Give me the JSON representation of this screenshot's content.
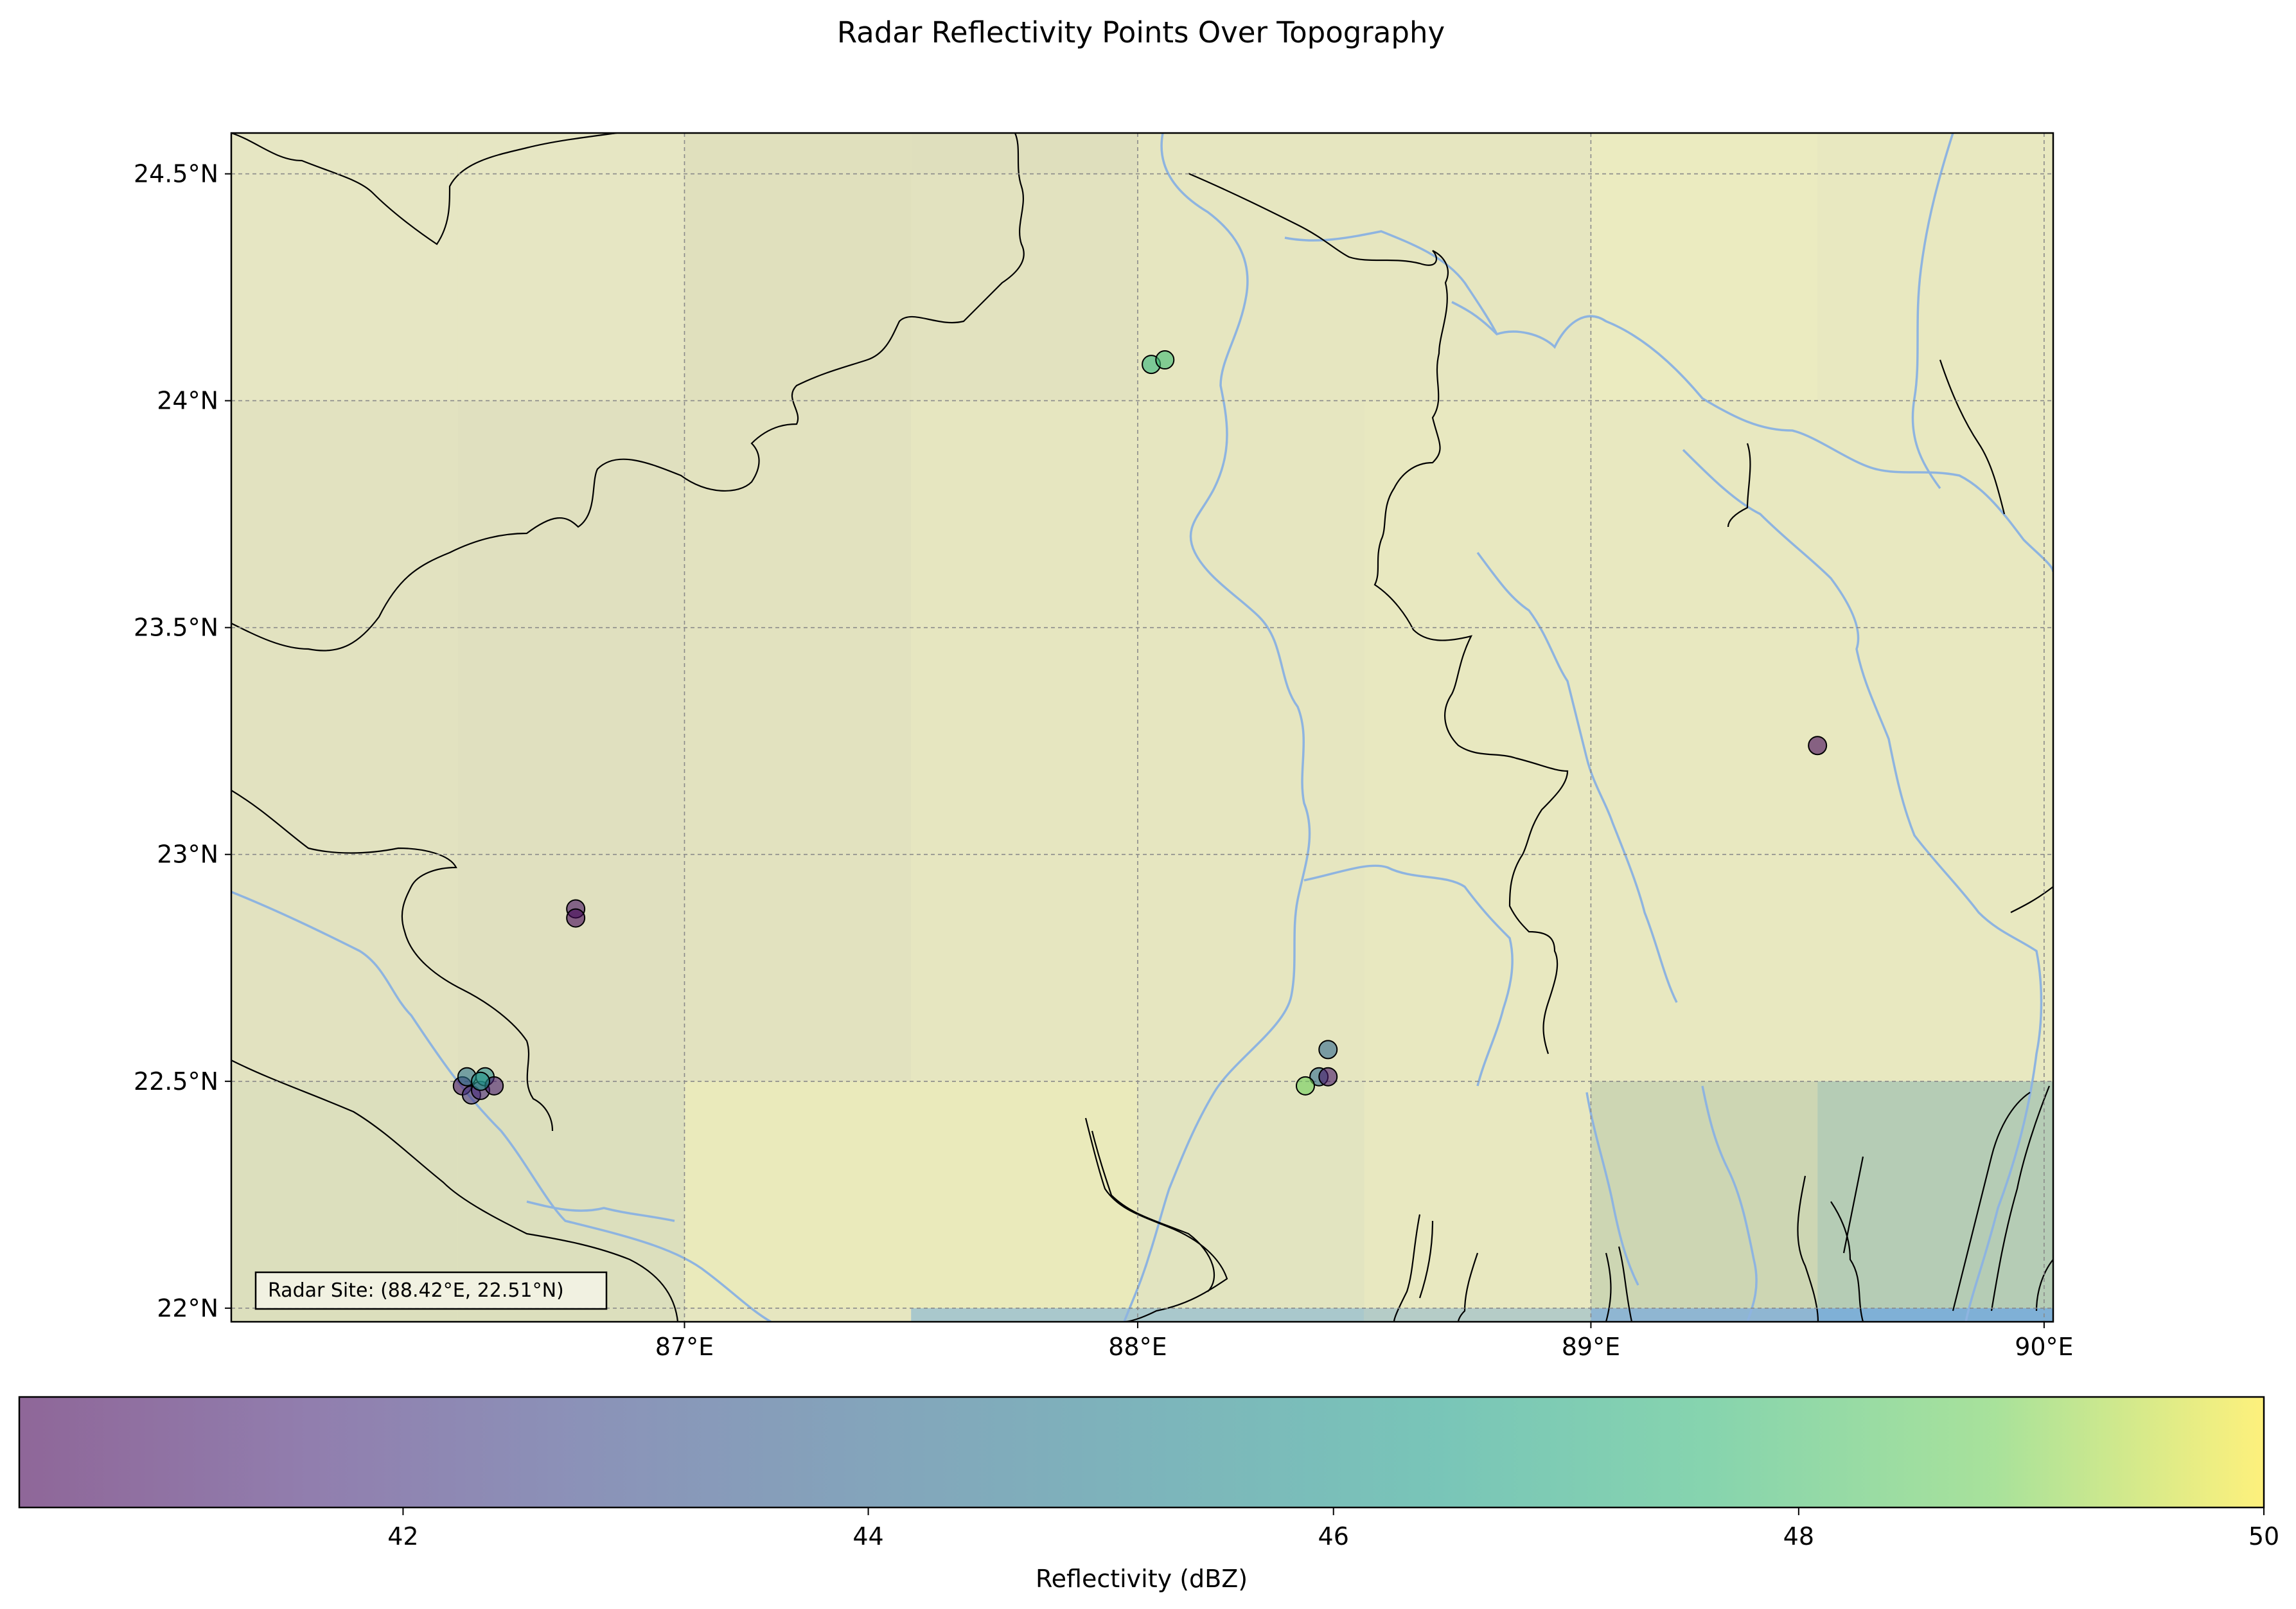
{
  "figure": {
    "title": "Radar Reflectivity Points Over Topography"
  },
  "chart_data": {
    "type": "scatter",
    "title": "Radar Reflectivity Points Over Topography",
    "projection": "PlateCarree",
    "extent": {
      "lon": [
        86.0,
        90.02
      ],
      "lat": [
        21.97,
        24.59
      ]
    },
    "x_ticks": [
      87,
      88,
      89,
      90
    ],
    "x_tick_labels": [
      "87°E",
      "88°E",
      "89°E",
      "90°E"
    ],
    "y_ticks": [
      22,
      22.5,
      23,
      23.5,
      24,
      24.5
    ],
    "y_tick_labels": [
      "22°N",
      "22.5°N",
      "23°N",
      "23.5°N",
      "24°N",
      "24.5°N"
    ],
    "grid": true,
    "basemap": {
      "description": "coarse topography/bathymetry cells with coastlines, rivers and borders",
      "ocean_color": "#7fb3d5",
      "land_color": "#e6e6bf",
      "river_color": "#8eb4e0",
      "border_color": "#000000",
      "cells": [
        {
          "lon": [
            86.0,
            86.5
          ],
          "lat": [
            24.0,
            24.59
          ],
          "shade": "#e6e6c3"
        },
        {
          "lon": [
            86.5,
            87.0
          ],
          "lat": [
            24.0,
            24.59
          ],
          "shade": "#e6e6c3"
        },
        {
          "lon": [
            87.0,
            87.5
          ],
          "lat": [
            24.0,
            24.59
          ],
          "shade": "#e0e0bd"
        },
        {
          "lon": [
            87.5,
            88.0
          ],
          "lat": [
            24.5,
            24.59
          ],
          "shade": "#dfdfbd"
        },
        {
          "lon": [
            87.5,
            88.0
          ],
          "lat": [
            24.0,
            24.5
          ],
          "shade": "#e2e2bf"
        },
        {
          "lon": [
            88.0,
            88.5
          ],
          "lat": [
            24.0,
            24.59
          ],
          "shade": "#e6e6c0"
        },
        {
          "lon": [
            88.5,
            89.0
          ],
          "lat": [
            24.0,
            24.59
          ],
          "shade": "#e6e6c0"
        },
        {
          "lon": [
            89.0,
            89.5
          ],
          "lat": [
            24.0,
            24.59
          ],
          "shade": "#ebebc0"
        },
        {
          "lon": [
            89.5,
            90.02
          ],
          "lat": [
            24.0,
            24.59
          ],
          "shade": "#e8e8c0"
        },
        {
          "lon": [
            86.0,
            86.5
          ],
          "lat": [
            22.5,
            24.0
          ],
          "shade": "#e2e2c0"
        },
        {
          "lon": [
            86.5,
            87.0
          ],
          "lat": [
            22.5,
            24.0
          ],
          "shade": "#e0e0bf"
        },
        {
          "lon": [
            87.0,
            87.5
          ],
          "lat": [
            22.5,
            24.0
          ],
          "shade": "#e2e2bf"
        },
        {
          "lon": [
            87.5,
            88.0
          ],
          "lat": [
            22.5,
            24.0
          ],
          "shade": "#e6e6c0"
        },
        {
          "lon": [
            88.0,
            88.5
          ],
          "lat": [
            22.5,
            24.0
          ],
          "shade": "#e6e6c0"
        },
        {
          "lon": [
            88.5,
            89.0
          ],
          "lat": [
            22.5,
            24.0
          ],
          "shade": "#e8e8c0"
        },
        {
          "lon": [
            89.0,
            89.5
          ],
          "lat": [
            22.5,
            24.0
          ],
          "shade": "#e8e8c0"
        },
        {
          "lon": [
            89.5,
            90.02
          ],
          "lat": [
            22.5,
            24.0
          ],
          "shade": "#e8e8c0"
        },
        {
          "lon": [
            86.0,
            86.5
          ],
          "lat": [
            21.97,
            22.5
          ],
          "shade": "#dcdfbd"
        },
        {
          "lon": [
            86.5,
            87.0
          ],
          "lat": [
            21.97,
            22.5
          ],
          "shade": "#dcdfbd"
        },
        {
          "lon": [
            87.0,
            87.5
          ],
          "lat": [
            22.0,
            22.5
          ],
          "shade": "#eaeabb"
        },
        {
          "lon": [
            87.5,
            88.0
          ],
          "lat": [
            22.0,
            22.5
          ],
          "shade": "#eaeabb"
        },
        {
          "lon": [
            88.0,
            88.5
          ],
          "lat": [
            22.0,
            22.5
          ],
          "shade": "#e2e4c0"
        },
        {
          "lon": [
            88.5,
            89.0
          ],
          "lat": [
            22.0,
            22.5
          ],
          "shade": "#e8e8c0"
        },
        {
          "lon": [
            89.0,
            89.5
          ],
          "lat": [
            22.0,
            22.5
          ],
          "shade": "#cdd6b3"
        },
        {
          "lon": [
            89.5,
            90.02
          ],
          "lat": [
            22.0,
            22.5
          ],
          "shade": "#b5ccb5"
        },
        {
          "lon": [
            87.0,
            87.5
          ],
          "lat": [
            21.97,
            22.0
          ],
          "shade": "#e6e6c0"
        },
        {
          "lon": [
            87.5,
            88.5
          ],
          "lat": [
            21.97,
            22.0
          ],
          "shade": "#a9c8cc"
        },
        {
          "lon": [
            88.5,
            89.0
          ],
          "lat": [
            21.97,
            22.0
          ],
          "shade": "#b5ccc7"
        },
        {
          "lon": [
            89.0,
            89.5
          ],
          "lat": [
            21.97,
            22.0
          ],
          "shade": "#8fb6d2"
        },
        {
          "lon": [
            89.5,
            90.02
          ],
          "lat": [
            21.97,
            22.0
          ],
          "shade": "#7fb0d6"
        }
      ]
    },
    "colorbar": {
      "label": "Reflectivity (dBZ)",
      "range": [
        40.35,
        50.0
      ],
      "ticks": [
        42,
        44,
        46,
        48,
        50
      ],
      "tick_labels": [
        "42",
        "44",
        "46",
        "48",
        "50"
      ],
      "colormap": "viridis",
      "alpha": 0.6
    },
    "points": [
      {
        "lon": 86.51,
        "lat": 22.49,
        "dbz": 41.0
      },
      {
        "lon": 86.53,
        "lat": 22.47,
        "dbz": 42.0
      },
      {
        "lon": 86.55,
        "lat": 22.48,
        "dbz": 41.5
      },
      {
        "lon": 86.52,
        "lat": 22.51,
        "dbz": 44.5
      },
      {
        "lon": 86.56,
        "lat": 22.51,
        "dbz": 45.5
      },
      {
        "lon": 86.58,
        "lat": 22.49,
        "dbz": 41.2
      },
      {
        "lon": 86.55,
        "lat": 22.5,
        "dbz": 46.0
      },
      {
        "lon": 86.76,
        "lat": 22.88,
        "dbz": 40.8
      },
      {
        "lon": 86.76,
        "lat": 22.86,
        "dbz": 40.5
      },
      {
        "lon": 88.03,
        "lat": 24.08,
        "dbz": 47.5
      },
      {
        "lon": 88.06,
        "lat": 24.09,
        "dbz": 47.8
      },
      {
        "lon": 88.42,
        "lat": 22.57,
        "dbz": 44.0
      },
      {
        "lon": 88.4,
        "lat": 22.51,
        "dbz": 44.2
      },
      {
        "lon": 88.42,
        "lat": 22.51,
        "dbz": 41.0
      },
      {
        "lon": 88.37,
        "lat": 22.49,
        "dbz": 48.8
      },
      {
        "lon": 89.5,
        "lat": 23.24,
        "dbz": 40.5
      }
    ],
    "radar_site": {
      "lon": 88.42,
      "lat": 22.51
    },
    "annotation": "Radar Site: (88.42°E, 22.51°N)"
  }
}
